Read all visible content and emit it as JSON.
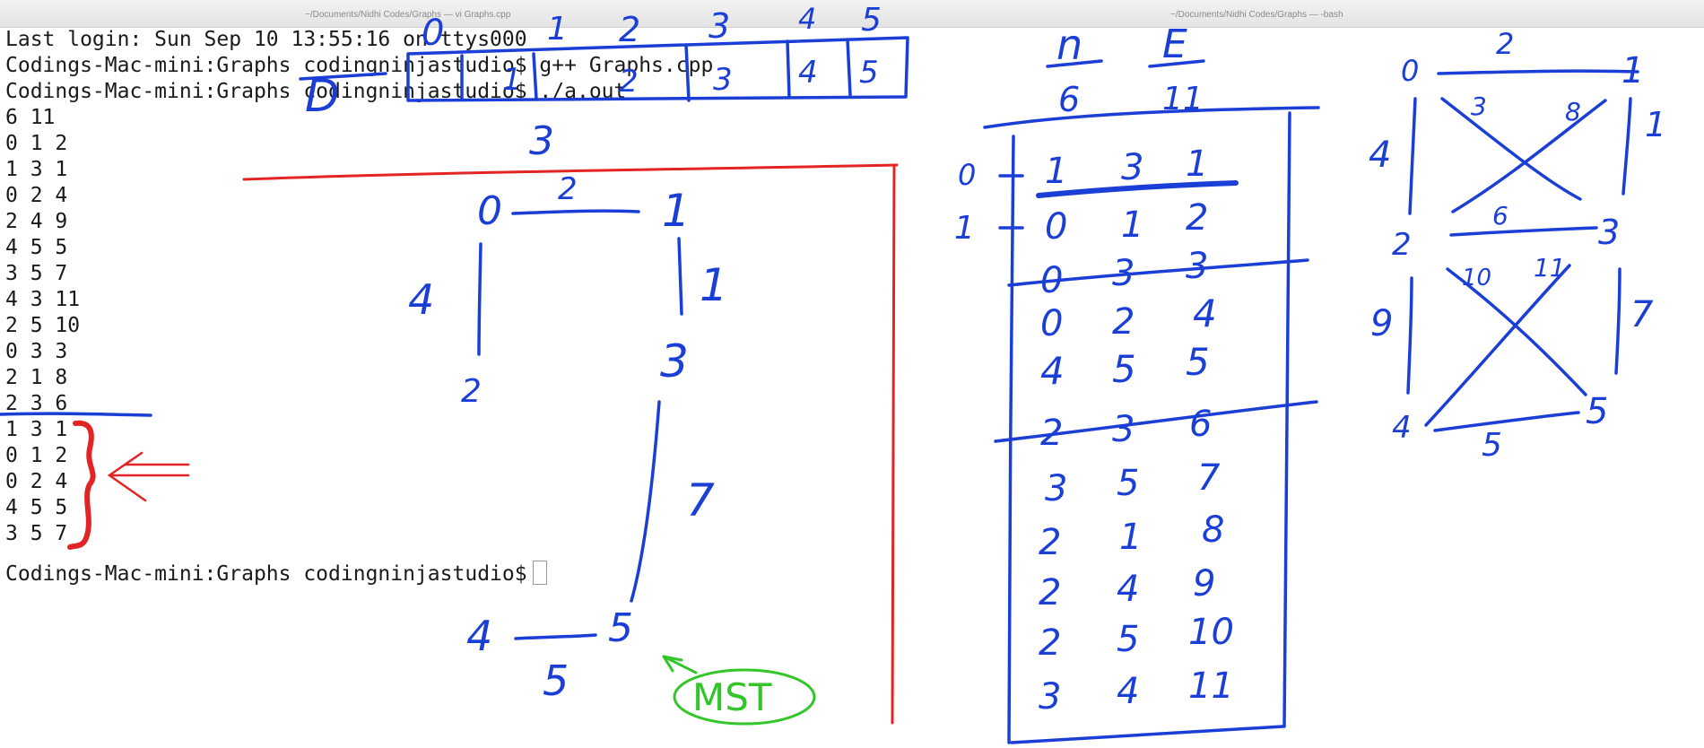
{
  "window": {
    "left_title": "~/Documents/Nidhi Codes/Graphs — vi Graphs.cpp",
    "right_title": "~/Documents/Nidhi Codes/Graphs — -bash"
  },
  "terminal": {
    "lines": [
      "Last login: Sun Sep 10 13:55:16 on ttys000",
      "Codings-Mac-mini:Graphs codingninjastudio$ g++ Graphs.cpp",
      "Codings-Mac-mini:Graphs codingninjastudio$ ./a.out",
      "6 11",
      "0 1 2",
      "1 3 1",
      "0 2 4",
      "2 4 9",
      "4 5 5",
      "3 5 7",
      "4 3 11",
      "2 5 10",
      "0 3 3",
      "2 1 8",
      "2 3 6",
      "1 3 1",
      "0 1 2",
      "0 2 4",
      "4 5 5",
      "3 5 7"
    ],
    "prompt": "Codings-Mac-mini:Graphs codingninjastudio$"
  },
  "annotations": {
    "top_row": [
      "1",
      "2",
      "3",
      "4",
      "5"
    ],
    "top_row_box": [
      "1",
      "2",
      "3",
      "4",
      "5"
    ],
    "top_letter": "D",
    "top_zero": "0",
    "top_three": "3",
    "mst_graph": {
      "nodes": [
        "0",
        "1",
        "2",
        "3",
        "4",
        "5"
      ],
      "weights": [
        "2",
        "4",
        "1",
        "7",
        "5"
      ]
    },
    "mst_label": "MST",
    "table": {
      "header_n": "n",
      "header_e": "E",
      "value_n": "6",
      "value_e": "11",
      "row_labels": [
        "0",
        "1"
      ],
      "rows": [
        [
          "1",
          "3",
          "1"
        ],
        [
          "0",
          "1",
          "2"
        ],
        [
          "0",
          "3",
          "3"
        ],
        [
          "0",
          "2",
          "4"
        ],
        [
          "4",
          "5",
          "5"
        ],
        [
          "2",
          "3",
          "6"
        ],
        [
          "3",
          "5",
          "7"
        ],
        [
          "2",
          "1",
          "8"
        ],
        [
          "2",
          "4",
          "9"
        ],
        [
          "2",
          "5",
          "10"
        ],
        [
          "3",
          "4",
          "11"
        ]
      ]
    },
    "full_graph": {
      "nodes": [
        "0",
        "1",
        "2",
        "3",
        "4",
        "5"
      ],
      "weights": [
        "2",
        "3",
        "8",
        "4",
        "1",
        "6",
        "10",
        "11",
        "9",
        "7",
        "5"
      ]
    }
  }
}
